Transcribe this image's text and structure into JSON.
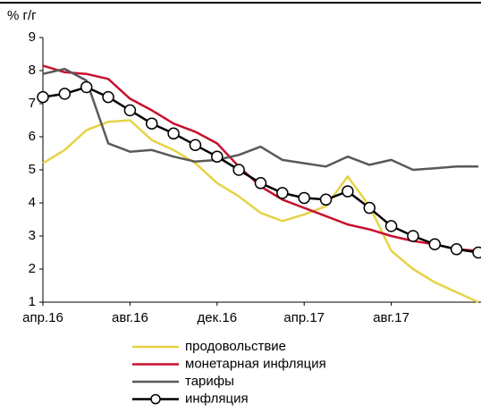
{
  "chart_data": {
    "type": "line",
    "y_label": "% г/г",
    "categories": [
      "апр.16",
      null,
      null,
      null,
      "авг.16",
      null,
      null,
      null,
      "дек.16",
      null,
      null,
      null,
      "апр.17",
      null,
      null,
      null,
      "авг.17",
      null,
      null,
      null,
      null
    ],
    "series": [
      {
        "name": "продовольствие",
        "color": "#e6d346",
        "values": [
          5.2,
          5.6,
          6.2,
          6.45,
          6.5,
          5.9,
          5.6,
          5.2,
          4.6,
          4.2,
          3.7,
          3.45,
          3.65,
          3.9,
          4.8,
          3.9,
          2.55,
          2.0,
          1.6,
          1.3,
          1.0
        ]
      },
      {
        "name": "монетарная инфляция",
        "color": "#c8102e",
        "values": [
          8.15,
          7.95,
          7.9,
          7.75,
          7.15,
          6.8,
          6.4,
          6.15,
          5.8,
          5.1,
          4.5,
          4.1,
          3.85,
          3.6,
          3.35,
          3.2,
          3.0,
          2.85,
          2.75,
          2.6,
          2.55
        ]
      },
      {
        "name": "тарифы",
        "color": "#595959",
        "values": [
          7.9,
          8.05,
          7.7,
          5.8,
          5.55,
          5.6,
          5.4,
          5.25,
          5.3,
          5.45,
          5.7,
          5.3,
          5.2,
          5.1,
          5.4,
          5.15,
          5.3,
          5.0,
          5.05,
          5.1,
          5.1
        ]
      },
      {
        "name": "инфляция",
        "color": "#000000",
        "marker": "circle",
        "values": [
          7.2,
          7.3,
          7.5,
          7.2,
          6.8,
          6.4,
          6.1,
          5.75,
          5.4,
          5.0,
          4.6,
          4.3,
          4.15,
          4.1,
          4.35,
          3.85,
          3.3,
          3.0,
          2.75,
          2.6,
          2.5
        ]
      }
    ],
    "ylim": [
      1,
      9
    ],
    "yticks": [
      1,
      2,
      3,
      4,
      5,
      6,
      7,
      8,
      9
    ],
    "grid": false
  }
}
